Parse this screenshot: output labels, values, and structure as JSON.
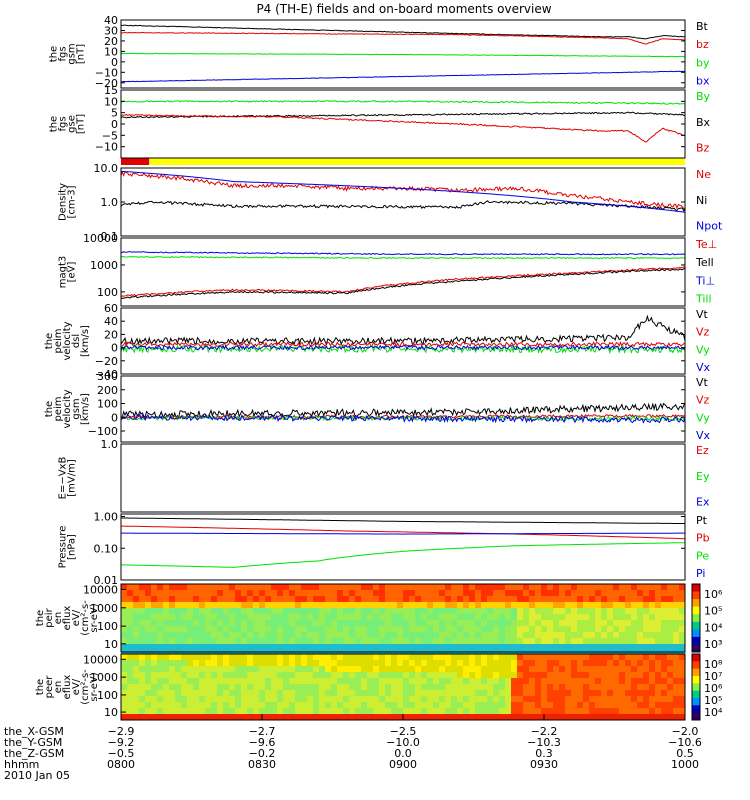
{
  "title": "P4 (TH-E) fields and on-board moments overview",
  "colors": {
    "black": "#000000",
    "red": "#e00000",
    "green": "#00e000",
    "blue": "#0000e0",
    "yellow": "#ffff00"
  },
  "status_bar": {
    "red_fraction": 0.05
  },
  "chart_data": [
    {
      "type": "line",
      "ylabel": [
        "the",
        "fgs",
        "gsm",
        "[nT]"
      ],
      "ylim": [
        -25,
        40
      ],
      "yticks": [
        "40",
        "30",
        "20",
        "10",
        "0",
        "−10",
        "−20"
      ],
      "ytick_values": [
        40,
        30,
        20,
        10,
        0,
        -10,
        -20
      ],
      "legend": [
        {
          "name": "Bt",
          "color": "black"
        },
        {
          "name": "bz",
          "color": "red"
        },
        {
          "name": "by",
          "color": "green"
        },
        {
          "name": "bx",
          "color": "blue"
        }
      ],
      "series": [
        {
          "name": "Bt",
          "color": "black",
          "noise": 0.3,
          "x": [
            0,
            0.3,
            0.6,
            0.85,
            0.9,
            0.93,
            0.96,
            1
          ],
          "y": [
            35,
            31,
            27,
            24,
            24,
            22,
            25,
            24
          ]
        },
        {
          "name": "bz",
          "color": "red",
          "noise": 0.3,
          "x": [
            0,
            0.3,
            0.6,
            0.85,
            0.9,
            0.93,
            0.96,
            1
          ],
          "y": [
            28,
            27,
            26,
            23,
            22,
            17,
            22,
            21
          ]
        },
        {
          "name": "by",
          "color": "green",
          "noise": 0.2,
          "x": [
            0,
            0.5,
            1
          ],
          "y": [
            8,
            7,
            5
          ]
        },
        {
          "name": "bx",
          "color": "blue",
          "noise": 0.2,
          "x": [
            0,
            0.5,
            1
          ],
          "y": [
            -19,
            -14,
            -9
          ]
        }
      ]
    },
    {
      "type": "line",
      "ylabel": [
        "the",
        "fgs",
        "gse",
        "[nT]"
      ],
      "ylim": [
        -15,
        15
      ],
      "yticks": [
        "15",
        "10",
        "5",
        "0",
        "−5",
        "−10"
      ],
      "ytick_values": [
        15,
        10,
        5,
        0,
        -5,
        -10
      ],
      "legend": [
        {
          "name": "By",
          "color": "green"
        },
        {
          "name": "Bx",
          "color": "black"
        },
        {
          "name": "Bz",
          "color": "red"
        }
      ],
      "series": [
        {
          "name": "By",
          "color": "green",
          "noise": 0.3,
          "x": [
            0,
            0.5,
            1
          ],
          "y": [
            10,
            10,
            9
          ]
        },
        {
          "name": "Bx",
          "color": "black",
          "noise": 0.3,
          "x": [
            0,
            0.5,
            0.9,
            1
          ],
          "y": [
            3,
            4,
            5,
            4
          ]
        },
        {
          "name": "Bz",
          "color": "red",
          "noise": 0.3,
          "x": [
            0,
            0.3,
            0.6,
            0.85,
            0.9,
            0.93,
            0.96,
            1
          ],
          "y": [
            4,
            3,
            0,
            -3,
            -3,
            -8,
            -2,
            -5
          ]
        }
      ]
    },
    {
      "type": "line",
      "log": true,
      "ylabel": [
        "Density",
        "[cm-3]"
      ],
      "ylim": [
        0.1,
        10
      ],
      "yticks": [
        "10.0",
        "1.0",
        "0.1"
      ],
      "ytick_values": [
        10,
        1,
        0.1
      ],
      "legend": [
        {
          "name": "Ne",
          "color": "red"
        },
        {
          "name": "Ni",
          "color": "black"
        },
        {
          "name": "Npot",
          "color": "blue"
        }
      ],
      "series": [
        {
          "name": "Ne",
          "color": "red",
          "noise": 0.06,
          "x": [
            0,
            0.1,
            0.2,
            0.3,
            0.4,
            0.5,
            0.6,
            0.7,
            0.8,
            0.9,
            1
          ],
          "y": [
            7,
            5,
            3,
            3,
            2.5,
            2.5,
            2.2,
            2.5,
            1.5,
            1,
            0.7
          ]
        },
        {
          "name": "Ni",
          "color": "black",
          "noise": 0.04,
          "x": [
            0,
            0.05,
            0.2,
            0.4,
            0.6,
            0.65,
            0.8,
            1
          ],
          "y": [
            0.8,
            1,
            0.75,
            0.75,
            0.7,
            1,
            0.9,
            0.6
          ]
        },
        {
          "name": "Npot",
          "color": "blue",
          "noise": 0.0,
          "x": [
            0,
            0.2,
            0.4,
            0.6,
            0.8,
            1
          ],
          "y": [
            8,
            4,
            3,
            2,
            1,
            0.5
          ]
        }
      ]
    },
    {
      "type": "line",
      "log": true,
      "ylabel": [
        "magt3",
        "[eV]"
      ],
      "ylim": [
        30,
        10000
      ],
      "yticks": [
        "10000",
        "1000",
        "100"
      ],
      "ytick_values": [
        10000,
        1000,
        100
      ],
      "legend": [
        {
          "name": "Te⊥",
          "color": "red"
        },
        {
          "name": "Tell",
          "color": "black"
        },
        {
          "name": "Ti⊥",
          "color": "blue"
        },
        {
          "name": "Till",
          "color": "green"
        }
      ],
      "series": [
        {
          "name": "Te⊥",
          "color": "red",
          "noise": 0.03,
          "x": [
            0,
            0.2,
            0.4,
            0.6,
            0.8,
            1
          ],
          "y": [
            70,
            120,
            100,
            300,
            500,
            800
          ]
        },
        {
          "name": "Tell",
          "color": "black",
          "noise": 0.03,
          "x": [
            0,
            0.2,
            0.4,
            0.6,
            0.8,
            1
          ],
          "y": [
            60,
            100,
            90,
            250,
            450,
            700
          ]
        },
        {
          "name": "Ti⊥",
          "color": "blue",
          "noise": 0.02,
          "x": [
            0,
            0.5,
            1
          ],
          "y": [
            3000,
            2500,
            2500
          ]
        },
        {
          "name": "Till",
          "color": "green",
          "noise": 0.02,
          "x": [
            0,
            0.5,
            1
          ],
          "y": [
            2000,
            1800,
            1800
          ]
        }
      ]
    },
    {
      "type": "line",
      "ylabel": [
        "the",
        "peim",
        "velocity",
        "dsl",
        "[km/s]"
      ],
      "ylim": [
        -40,
        60
      ],
      "yticks": [
        "60",
        "40",
        "20",
        "0",
        "−20",
        "−40"
      ],
      "ytick_values": [
        60,
        40,
        20,
        0,
        -20,
        -40
      ],
      "legend": [
        {
          "name": "Vt",
          "color": "black"
        },
        {
          "name": "Vz",
          "color": "red"
        },
        {
          "name": "Vy",
          "color": "green"
        },
        {
          "name": "Vx",
          "color": "blue"
        }
      ],
      "series": [
        {
          "name": "Vt",
          "color": "black",
          "noise": 5,
          "x": [
            0,
            0.5,
            0.9,
            0.93,
            1
          ],
          "y": [
            10,
            10,
            15,
            45,
            15
          ]
        },
        {
          "name": "Vz",
          "color": "red",
          "noise": 3,
          "x": [
            0,
            0.5,
            1
          ],
          "y": [
            5,
            5,
            5
          ]
        },
        {
          "name": "Vy",
          "color": "green",
          "noise": 5,
          "x": [
            0,
            0.5,
            1
          ],
          "y": [
            -2,
            -2,
            -3
          ]
        },
        {
          "name": "Vx",
          "color": "blue",
          "noise": 3,
          "x": [
            0,
            0.5,
            1
          ],
          "y": [
            0,
            0,
            0
          ]
        }
      ]
    },
    {
      "type": "line",
      "ylabel": [
        "the",
        "peim",
        "velocity",
        "gsm",
        "[km/s]"
      ],
      "ylim": [
        -180,
        300
      ],
      "yticks": [
        "300",
        "200",
        "100",
        "0",
        "−100"
      ],
      "ytick_values": [
        300,
        200,
        100,
        0,
        -100
      ],
      "legend": [
        {
          "name": "Vt",
          "color": "black"
        },
        {
          "name": "Vz",
          "color": "red"
        },
        {
          "name": "Vy",
          "color": "green"
        },
        {
          "name": "Vx",
          "color": "blue"
        }
      ],
      "series": [
        {
          "name": "Vt",
          "color": "black",
          "noise": 25,
          "x": [
            0,
            0.6,
            1
          ],
          "y": [
            20,
            40,
            80
          ]
        },
        {
          "name": "Vz",
          "color": "red",
          "noise": 10,
          "x": [
            0,
            1
          ],
          "y": [
            0,
            10
          ]
        },
        {
          "name": "Vy",
          "color": "green",
          "noise": 15,
          "x": [
            0,
            1
          ],
          "y": [
            -5,
            -10
          ]
        },
        {
          "name": "Vx",
          "color": "blue",
          "noise": 20,
          "x": [
            0,
            1
          ],
          "y": [
            0,
            -20
          ]
        }
      ]
    },
    {
      "type": "line",
      "ylabel": [
        "E=−VxB",
        "[mV/m]"
      ],
      "ylim": [
        -1,
        1
      ],
      "yticks": [
        "1.0"
      ],
      "ytick_values": [
        1.0
      ],
      "legend": [
        {
          "name": "Ez",
          "color": "red"
        },
        {
          "name": "Ey",
          "color": "green"
        },
        {
          "name": "Ex",
          "color": "blue"
        }
      ],
      "series": []
    },
    {
      "type": "line",
      "log": true,
      "ylabel": [
        "Pressure",
        "[nPa]"
      ],
      "ylim": [
        0.01,
        1.2
      ],
      "yticks": [
        "1.00",
        "0.10",
        "0.01"
      ],
      "ytick_values": [
        1,
        0.1,
        0.01
      ],
      "legend": [
        {
          "name": "Pt",
          "color": "black"
        },
        {
          "name": "Pb",
          "color": "red"
        },
        {
          "name": "Pe",
          "color": "green"
        },
        {
          "name": "Pi",
          "color": "blue"
        }
      ],
      "series": [
        {
          "name": "Pt",
          "color": "black",
          "noise": 0.0,
          "x": [
            0,
            0.5,
            1
          ],
          "y": [
            0.9,
            0.7,
            0.6
          ]
        },
        {
          "name": "Pb",
          "color": "red",
          "noise": 0.0,
          "x": [
            0,
            0.4,
            0.7,
            1
          ],
          "y": [
            0.5,
            0.35,
            0.28,
            0.2
          ]
        },
        {
          "name": "Pe",
          "color": "green",
          "noise": 0.0,
          "x": [
            0,
            0.2,
            0.35,
            0.5,
            0.7,
            1
          ],
          "y": [
            0.03,
            0.025,
            0.04,
            0.08,
            0.12,
            0.15
          ]
        },
        {
          "name": "Pi",
          "color": "blue",
          "noise": 0.0,
          "x": [
            0,
            0.5,
            1
          ],
          "y": [
            0.3,
            0.28,
            0.3
          ]
        }
      ]
    },
    {
      "type": "heatmap",
      "ylabel": [
        "the",
        "peir",
        "en",
        "eflux",
        "eV/",
        "(cm²-s-",
        "sr-eV)"
      ],
      "yticks": [
        "10000",
        "1000",
        "100",
        "10"
      ],
      "colorbar_ticks": [
        "10⁶",
        "10⁵",
        "10⁴",
        "10³"
      ]
    },
    {
      "type": "heatmap",
      "ylabel": [
        "the",
        "peer",
        "en",
        "eflux",
        "eV/",
        "(cm²-s-",
        "sr-eV)"
      ],
      "yticks": [
        "10000",
        "1000",
        "100",
        "10"
      ],
      "colorbar_ticks": [
        "10⁸",
        "10⁷",
        "10⁶",
        "10⁵",
        "10⁴"
      ]
    }
  ],
  "x_axis": {
    "row_labels": [
      "the_X-GSM",
      "the_Y-GSM",
      "the_Z-GSM",
      "hhmm",
      "2010 Jan 05"
    ],
    "columns": [
      {
        "pos": 0.0,
        "values": [
          "−2.9",
          "−9.2",
          "−0.5",
          "0800"
        ]
      },
      {
        "pos": 0.25,
        "values": [
          "−2.7",
          "−9.6",
          "−0.2",
          "0830"
        ]
      },
      {
        "pos": 0.5,
        "values": [
          "−2.5",
          "−10.0",
          "0.0",
          "0900"
        ]
      },
      {
        "pos": 0.75,
        "values": [
          "−2.2",
          "−10.3",
          "0.3",
          "0930"
        ]
      },
      {
        "pos": 1.0,
        "values": [
          "−2.0",
          "−10.6",
          "0.5",
          "1000"
        ]
      }
    ]
  }
}
